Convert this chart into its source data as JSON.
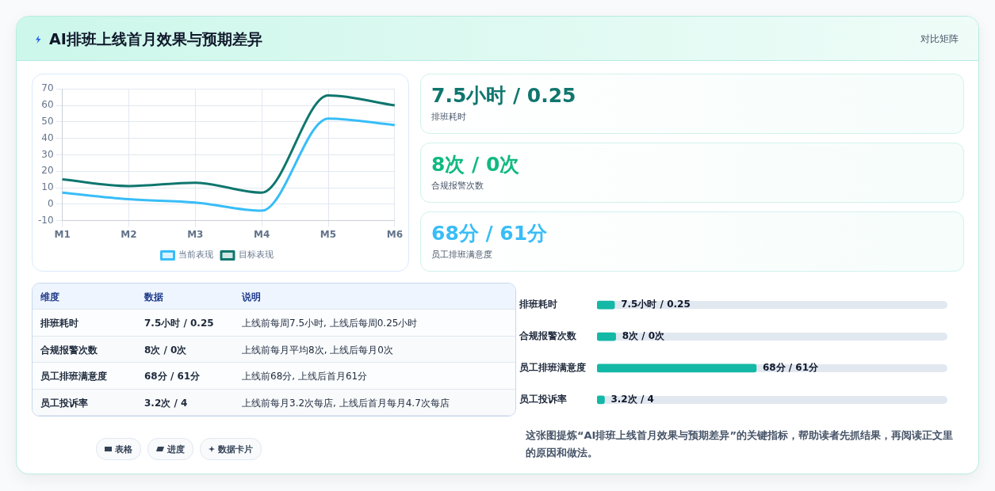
{
  "chart_data": [
    {
      "type": "other",
      "title": "AI排班上线首月效果与预期差异",
      "subtitle": "对比矩阵"
    },
    {
      "type": "line",
      "categories": [
        "M1",
        "M2",
        "M3",
        "M4",
        "M5",
        "M6"
      ],
      "series": [
        {
          "name": "当前表现",
          "color": "#38bdf8",
          "values": [
            7,
            3,
            1,
            -4,
            52,
            48
          ]
        },
        {
          "name": "目标表现",
          "color": "#0f766e",
          "values": [
            15,
            11,
            13,
            7,
            66,
            60
          ]
        }
      ],
      "ylim": [
        -10,
        70
      ],
      "yticks": [
        -10,
        0,
        10,
        20,
        30,
        40,
        50,
        60,
        70
      ],
      "grid": true,
      "legend": "bottom",
      "marker": "none"
    },
    {
      "type": "other",
      "annotations": [
        "7.5小时 / 0.25",
        "排班耗时",
        "8次 / 0次",
        "合规报警次数",
        "68分 / 61分",
        "员工排班满意度"
      ]
    },
    {
      "type": "other",
      "annotations": [
        "维度",
        "数据",
        "说明",
        "排班耗时",
        "7.5小时 / 0.25",
        "上线前每周7.5小时, 上线后每周0.25小时",
        "合规报警次数",
        "8次 / 0次",
        "上线前每月平均8次, 上线后每月0次",
        "员工排班满意度",
        "68分 / 61分",
        "上线前68分, 上线后首月61分",
        "员工投诉率",
        "3.2次 / 4",
        "上线前每月3.2次每店, 上线后首月每月4.7次每店"
      ]
    },
    {
      "type": "bar",
      "orientation": "horizontal",
      "categories": [
        "排班耗时",
        "合规报警次数",
        "员工排班满意度",
        "员工投诉率"
      ],
      "values": [
        7.5,
        8,
        68,
        3.2
      ],
      "color": "#14b8a6",
      "value_labels": [
        "7.5小时 / 0.25",
        "8次 / 0次",
        "68分 / 61分",
        "3.2次 / 4"
      ],
      "annotations": [
        "这张图提炼“AI排班上线首月效果与预期差异”的关键指标，帮助读者先抓结果，再阅读正文里的原因和做法。"
      ]
    },
    {
      "type": "other",
      "annotations": [
        "表格",
        "进度",
        "数据卡片"
      ]
    }
  ]
}
